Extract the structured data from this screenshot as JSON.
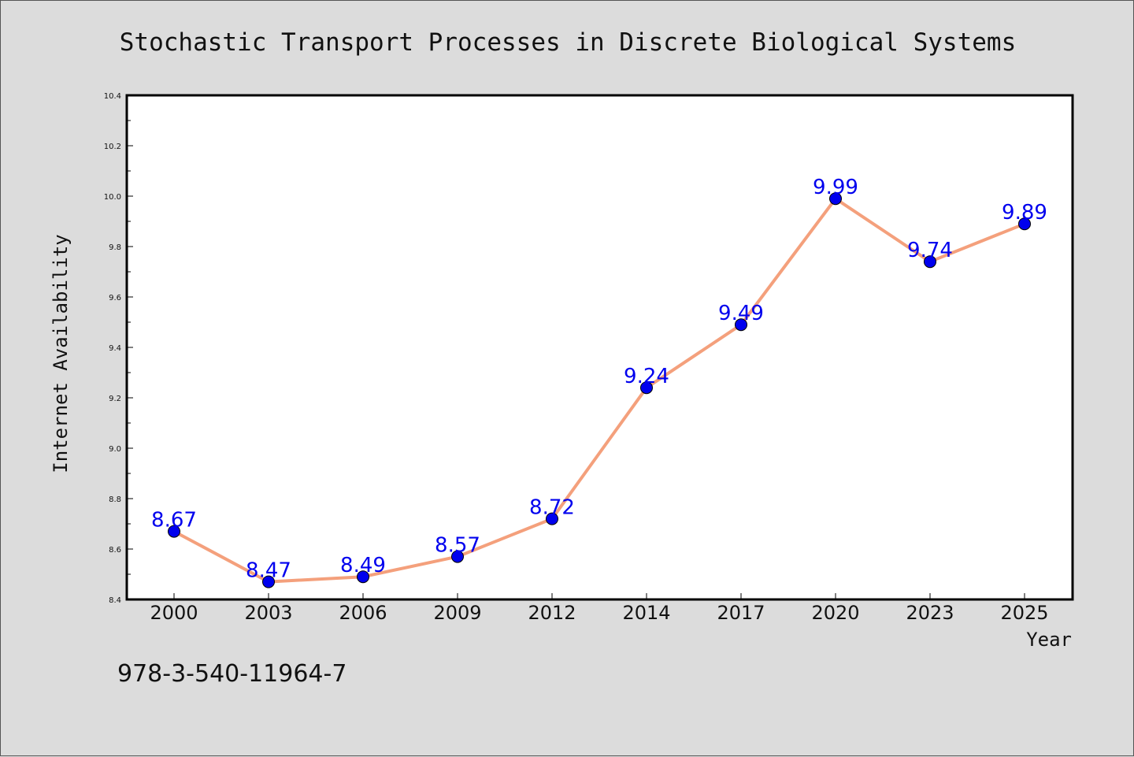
{
  "chart_data": {
    "type": "line",
    "title": "Stochastic Transport Processes in Discrete Biological Systems",
    "xlabel": "Year",
    "ylabel": "Internet Availability",
    "categories": [
      "2000",
      "2003",
      "2006",
      "2009",
      "2012",
      "2014",
      "2017",
      "2020",
      "2023",
      "2025"
    ],
    "series": [
      {
        "values": [
          8.67,
          8.47,
          8.49,
          8.57,
          8.72,
          9.24,
          9.49,
          9.99,
          9.74,
          9.89
        ],
        "data_labels": [
          "8.67",
          "8.47",
          "8.49",
          "8.57",
          "8.72",
          "9.24",
          "9.49",
          "9.99",
          "9.74",
          "9.89"
        ]
      }
    ],
    "ylim": [
      8.4,
      10.4
    ],
    "yticks": [
      "8.4",
      "8.6",
      "8.8",
      "9.0",
      "9.2",
      "9.4",
      "9.6",
      "9.8",
      "10.0",
      "10.2",
      "10.4"
    ],
    "grid": false,
    "legend": "none",
    "colors": {
      "background": "#dcdcdc",
      "plot_background": "#ffffff",
      "line": "#f4a07c",
      "marker": "#0000ee",
      "data_label": "#0000ee"
    }
  },
  "annotation": "978-3-540-11964-7"
}
